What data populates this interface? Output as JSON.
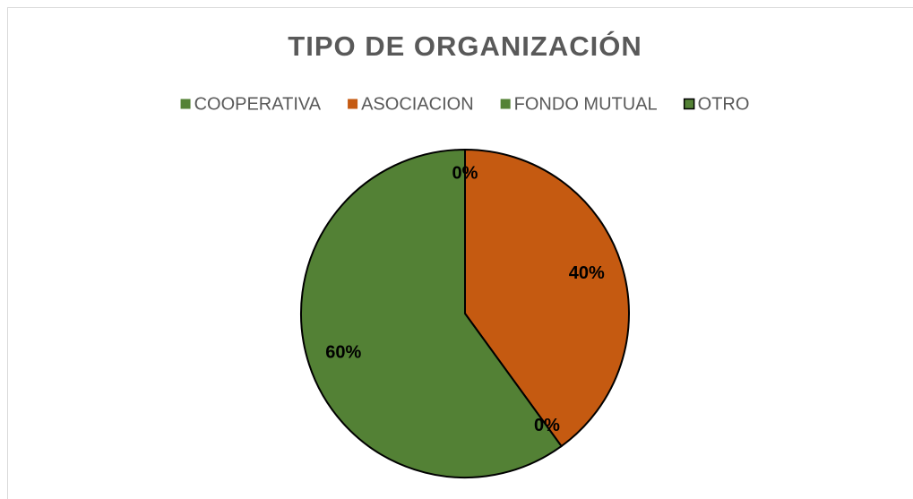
{
  "chart_data": {
    "type": "pie",
    "title": "TIPO DE ORGANIZACIÓN",
    "categories": [
      "COOPERATIVA",
      "ASOCIACION",
      "FONDO MUTUAL",
      "OTRO"
    ],
    "values": [
      0,
      40,
      0,
      60
    ],
    "value_labels": [
      "0%",
      "40%",
      "0%",
      "60%"
    ],
    "colors": [
      "#548235",
      "#c55a11",
      "#548235",
      "#538135"
    ],
    "legend": "top"
  }
}
